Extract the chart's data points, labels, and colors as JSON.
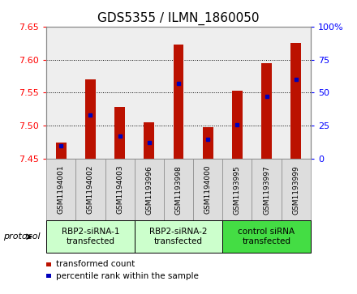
{
  "title": "GDS5355 / ILMN_1860050",
  "samples": [
    "GSM1194001",
    "GSM1194002",
    "GSM1194003",
    "GSM1193996",
    "GSM1193998",
    "GSM1194000",
    "GSM1193995",
    "GSM1193997",
    "GSM1193999"
  ],
  "transformed_counts": [
    7.475,
    7.57,
    7.528,
    7.505,
    7.623,
    7.498,
    7.553,
    7.595,
    7.625
  ],
  "percentile_ranks": [
    10,
    33,
    17,
    12,
    57,
    15,
    26,
    47,
    60
  ],
  "ylim_left": [
    7.45,
    7.65
  ],
  "yticks_left": [
    7.45,
    7.5,
    7.55,
    7.6,
    7.65
  ],
  "yticks_right": [
    0,
    25,
    50,
    75,
    100
  ],
  "groups": [
    {
      "label": "RBP2-siRNA-1\ntransfected",
      "start": 0,
      "end": 3,
      "color": "#ccffcc"
    },
    {
      "label": "RBP2-siRNA-2\ntransfected",
      "start": 3,
      "end": 6,
      "color": "#ccffcc"
    },
    {
      "label": "control siRNA\ntransfected",
      "start": 6,
      "end": 9,
      "color": "#44dd44"
    }
  ],
  "bar_color": "#bb1100",
  "dot_color": "#0000bb",
  "bar_width": 0.35,
  "base_value": 7.45,
  "bg_color": "#ffffff",
  "plot_bg": "#eeeeee",
  "sample_box_color": "#dddddd",
  "legend_items": [
    {
      "label": "transformed count",
      "color": "#bb1100"
    },
    {
      "label": "percentile rank within the sample",
      "color": "#0000bb"
    }
  ]
}
